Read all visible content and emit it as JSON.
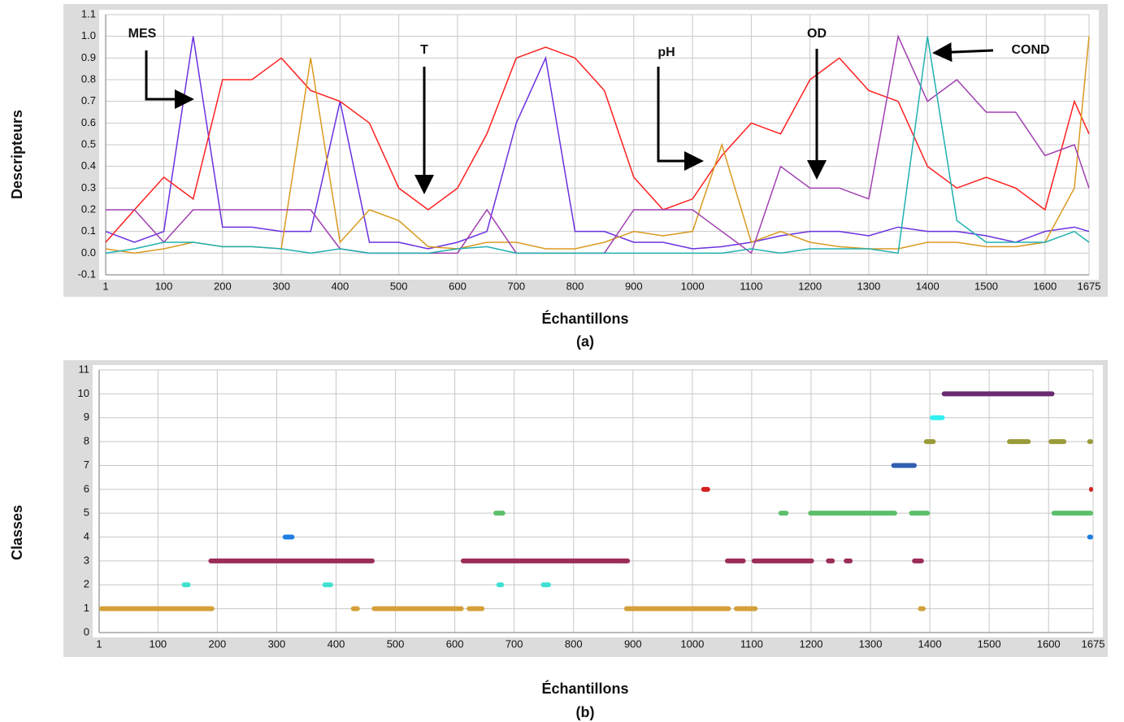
{
  "chart_data": [
    {
      "type": "line",
      "ylabel": "Descripteurs",
      "xlabel": "Échantillons",
      "caption": "(a)",
      "xlim": [
        1,
        1675
      ],
      "xticks": [
        1,
        100,
        200,
        300,
        400,
        500,
        600,
        700,
        800,
        900,
        1000,
        1100,
        1200,
        1300,
        1400,
        1500,
        1600,
        1675
      ],
      "ylim": [
        -0.1,
        1.1
      ],
      "yticks": [
        -0.1,
        {
          "value": 0,
          "label": "0.0"
        },
        0.1,
        0.2,
        0.3,
        0.4,
        0.5,
        0.6,
        0.7,
        0.8,
        0.9,
        {
          "value": 1,
          "label": "1.0"
        },
        1.1
      ],
      "grid": true,
      "x": [
        1,
        50,
        100,
        150,
        200,
        250,
        300,
        350,
        400,
        450,
        500,
        550,
        600,
        650,
        700,
        750,
        800,
        850,
        900,
        950,
        1000,
        1050,
        1100,
        1150,
        1200,
        1250,
        1300,
        1350,
        1400,
        1450,
        1500,
        1550,
        1600,
        1650,
        1675
      ],
      "series": [
        {
          "name": "MES",
          "color": "#6a30e0",
          "values": [
            0.1,
            0.05,
            0.1,
            1.0,
            0.12,
            0.12,
            0.1,
            0.1,
            0.7,
            0.05,
            0.05,
            0.02,
            0.05,
            0.1,
            0.6,
            0.9,
            0.1,
            0.1,
            0.05,
            0.05,
            0.02,
            0.03,
            0.05,
            0.08,
            0.1,
            0.1,
            0.08,
            0.12,
            0.1,
            0.1,
            0.08,
            0.05,
            0.1,
            0.12,
            0.1
          ]
        },
        {
          "name": "T",
          "color": "#ff2020",
          "values": [
            0.05,
            0.2,
            0.35,
            0.25,
            0.8,
            0.8,
            0.9,
            0.75,
            0.7,
            0.6,
            0.3,
            0.2,
            0.3,
            0.55,
            0.9,
            0.95,
            0.9,
            0.75,
            0.35,
            0.2,
            0.25,
            0.45,
            0.6,
            0.55,
            0.8,
            0.9,
            0.75,
            0.7,
            0.4,
            0.3,
            0.35,
            0.3,
            0.2,
            0.7,
            0.55
          ]
        },
        {
          "name": "pH",
          "color": "#d99a20",
          "values": [
            0.02,
            0,
            0.02,
            0.05,
            0.03,
            0.03,
            0.02,
            0.9,
            0.05,
            0.2,
            0.15,
            0.03,
            0.02,
            0.05,
            0.05,
            0.02,
            0.02,
            0.05,
            0.1,
            0.08,
            0.1,
            0.5,
            0.05,
            0.1,
            0.05,
            0.03,
            0.02,
            0.02,
            0.05,
            0.05,
            0.03,
            0.03,
            0.05,
            0.3,
            1.0
          ]
        },
        {
          "name": "OD",
          "color": "#a040b0",
          "values": [
            0.2,
            0.2,
            0.05,
            0.2,
            0.2,
            0.2,
            0.2,
            0.2,
            0.02,
            0,
            0,
            0,
            0,
            0.2,
            0,
            0,
            0,
            0,
            0.2,
            0.2,
            0.2,
            0.1,
            0,
            0.4,
            0.3,
            0.3,
            0.25,
            1.0,
            0.7,
            0.8,
            0.65,
            0.65,
            0.45,
            0.5,
            0.3
          ]
        },
        {
          "name": "COND",
          "color": "#20b0b0",
          "values": [
            0,
            0.02,
            0.05,
            0.05,
            0.03,
            0.03,
            0.02,
            0,
            0.02,
            0,
            0,
            0,
            0.02,
            0.03,
            0,
            0,
            0,
            0,
            0,
            0,
            0,
            0,
            0.02,
            0,
            0.02,
            0.02,
            0.02,
            0,
            1.0,
            0.15,
            0.05,
            0.05,
            0.05,
            0.1,
            0.05
          ]
        }
      ]
    },
    {
      "type": "segments",
      "ylabel": "Classes",
      "xlabel": "Échantillons",
      "caption": "(b)",
      "xlim": [
        1,
        1675
      ],
      "xticks": [
        1,
        100,
        200,
        300,
        400,
        500,
        600,
        700,
        800,
        900,
        1000,
        1100,
        1200,
        1300,
        1400,
        1500,
        1600,
        1675
      ],
      "ylim": [
        0,
        11
      ],
      "yticks": [
        0,
        1,
        2,
        3,
        4,
        5,
        6,
        7,
        8,
        9,
        10,
        11
      ],
      "grid": true,
      "series": [
        {
          "y": 1,
          "color": "#d4a03a",
          "ranges": [
            [
              1,
              195
            ],
            [
              425,
              440
            ],
            [
              460,
              615
            ],
            [
              620,
              650
            ],
            [
              885,
              1065
            ],
            [
              1070,
              1110
            ],
            [
              1380,
              1393
            ]
          ]
        },
        {
          "y": 2,
          "color": "#40e0d0",
          "ranges": [
            [
              140,
              155
            ],
            [
              377,
              395
            ],
            [
              670,
              683
            ],
            [
              745,
              762
            ]
          ]
        },
        {
          "y": 3,
          "color": "#9b2d5a",
          "ranges": [
            [
              185,
              465
            ],
            [
              610,
              895
            ],
            [
              1055,
              1090
            ],
            [
              1100,
              1205
            ],
            [
              1225,
              1240
            ],
            [
              1255,
              1270
            ],
            [
              1370,
              1390
            ]
          ]
        },
        {
          "y": 4,
          "color": "#1e7fe0",
          "ranges": [
            [
              310,
              330
            ],
            [
              1665,
              1675
            ]
          ]
        },
        {
          "y": 5,
          "color": "#5cbf6a",
          "ranges": [
            [
              665,
              685
            ],
            [
              1145,
              1162
            ],
            [
              1195,
              1345
            ],
            [
              1365,
              1400
            ],
            [
              1605,
              1675
            ]
          ]
        },
        {
          "y": 6,
          "color": "#d42020",
          "ranges": [
            [
              1015,
              1030
            ],
            [
              1668,
              1675
            ]
          ]
        },
        {
          "y": 7,
          "color": "#2f5fb0",
          "ranges": [
            [
              1335,
              1378
            ]
          ]
        },
        {
          "y": 8,
          "color": "#9a9a3a",
          "ranges": [
            [
              1390,
              1410
            ],
            [
              1530,
              1570
            ],
            [
              1600,
              1630
            ],
            [
              1665,
              1675
            ]
          ]
        },
        {
          "y": 9,
          "color": "#30f0f0",
          "ranges": [
            [
              1400,
              1425
            ]
          ]
        },
        {
          "y": 10,
          "color": "#6a2a70",
          "ranges": [
            [
              1420,
              1610
            ]
          ]
        }
      ]
    }
  ]
}
